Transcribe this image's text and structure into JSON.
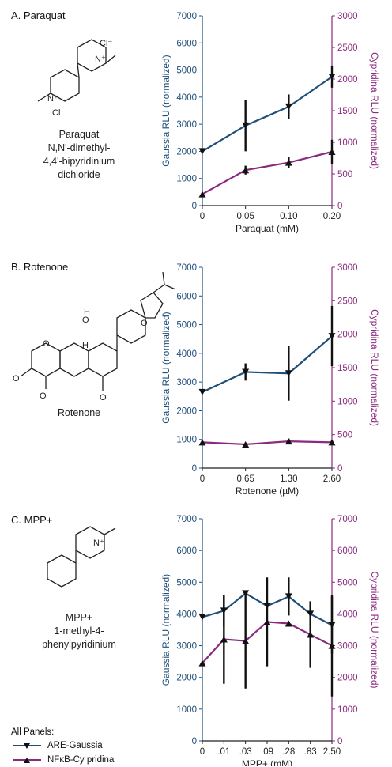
{
  "colors": {
    "gaussia": "#1f4e79",
    "cypridina": "#8a2a7e",
    "axis": "#222"
  },
  "panels": [
    {
      "title": "A. Paraquat",
      "compound": [
        "Paraquat",
        "N,N'-dimethyl-",
        "4,4'-bipyridinium",
        "dichloride"
      ],
      "structure_labels": [
        "Cl⁻",
        "N⁺",
        "N⁺",
        "Cl⁻"
      ]
    },
    {
      "title": "B. Rotenone",
      "compound": [
        "Rotenone"
      ],
      "structure_labels": [
        "O",
        "O",
        "O",
        "O",
        "O",
        "O",
        "H",
        "H"
      ]
    },
    {
      "title": "C. MPP+",
      "compound": [
        "MPP+",
        "1-methyl-4-",
        "phenylpyridinium"
      ],
      "structure_labels": [
        "N⁺"
      ]
    }
  ],
  "legend": {
    "title": "All Panels:",
    "items": [
      "ARE-Gaussia",
      "NFκB-Cy pridina"
    ]
  },
  "chart_data": [
    {
      "type": "line",
      "xlabel": "Paraquat (mM)",
      "ylabel": "Gaussia RLU (normalized)",
      "y2label": "Cypridina RLU (normalized)",
      "categories": [
        "0",
        "0.05",
        "0.10",
        "0.20"
      ],
      "ylim": [
        0,
        7000
      ],
      "y2lim": [
        0,
        3000
      ],
      "yticks": [
        "0",
        "1000",
        "2000",
        "3000",
        "4000",
        "5000",
        "6000",
        "7000"
      ],
      "y2ticks": [
        "0",
        "500",
        "1000",
        "1500",
        "2000",
        "2500",
        "3000"
      ],
      "series": [
        {
          "name": "ARE-Gaussia",
          "axis": "left",
          "values": [
            2000,
            2950,
            3650,
            4750
          ],
          "err": [
            0,
            950,
            450,
            400
          ]
        },
        {
          "name": "NFκB-Cy pridina",
          "axis": "right",
          "values": [
            180,
            560,
            680,
            850
          ],
          "err": [
            0,
            70,
            90,
            190
          ]
        }
      ]
    },
    {
      "type": "line",
      "xlabel": "Rotenone (µM)",
      "ylabel": "Gaussia RLU (normalized)",
      "y2label": "Cypridina RLU (normalized)",
      "categories": [
        "0",
        "0.65",
        "1.30",
        "2.60"
      ],
      "ylim": [
        0,
        7000
      ],
      "y2lim": [
        0,
        3000
      ],
      "yticks": [
        "0",
        "1000",
        "2000",
        "3000",
        "4000",
        "5000",
        "6000",
        "7000"
      ],
      "y2ticks": [
        "0",
        "500",
        "1000",
        "1500",
        "2000",
        "2500",
        "3000"
      ],
      "series": [
        {
          "name": "ARE-Gaussia",
          "axis": "left",
          "values": [
            2650,
            3350,
            3300,
            4600
          ],
          "err": [
            0,
            300,
            950,
            1050
          ]
        },
        {
          "name": "NFκB-Cy pridina",
          "axis": "right",
          "values": [
            385,
            355,
            400,
            385
          ],
          "err": [
            0,
            25,
            40,
            25
          ]
        }
      ]
    },
    {
      "type": "line",
      "xlabel": "MPP+ (mM)",
      "ylabel": "Gaussia RLU (normalized)",
      "y2label": "Cypridina RLU (normalized)",
      "categories": [
        "0",
        ".01",
        ".03",
        ".09",
        ".28",
        ".83",
        "2.50"
      ],
      "ylim": [
        0,
        7000
      ],
      "y2lim": [
        0,
        7000
      ],
      "yticks": [
        "0",
        "1000",
        "2000",
        "3000",
        "4000",
        "5000",
        "6000",
        "7000"
      ],
      "y2ticks": [
        "0",
        "1000",
        "2000",
        "3000",
        "4000",
        "5000",
        "6000",
        "7000"
      ],
      "series": [
        {
          "name": "ARE-Gaussia",
          "axis": "left",
          "values": [
            3900,
            4100,
            4650,
            4250,
            4550,
            4000,
            3650
          ],
          "err": [
            0,
            500,
            1500,
            1600,
            600,
            1700,
            900
          ],
          "err_on": [
            false,
            true,
            false,
            false,
            true,
            false,
            true
          ]
        },
        {
          "name": "NFκB-Cy pridina",
          "axis": "right",
          "values": [
            2450,
            3200,
            3150,
            3750,
            3700,
            3350,
            3000
          ],
          "err": [
            0,
            1400,
            1500,
            1400,
            1300,
            1050,
            1600
          ],
          "err_on": [
            false,
            true,
            true,
            true,
            false,
            true,
            true
          ]
        }
      ]
    }
  ]
}
